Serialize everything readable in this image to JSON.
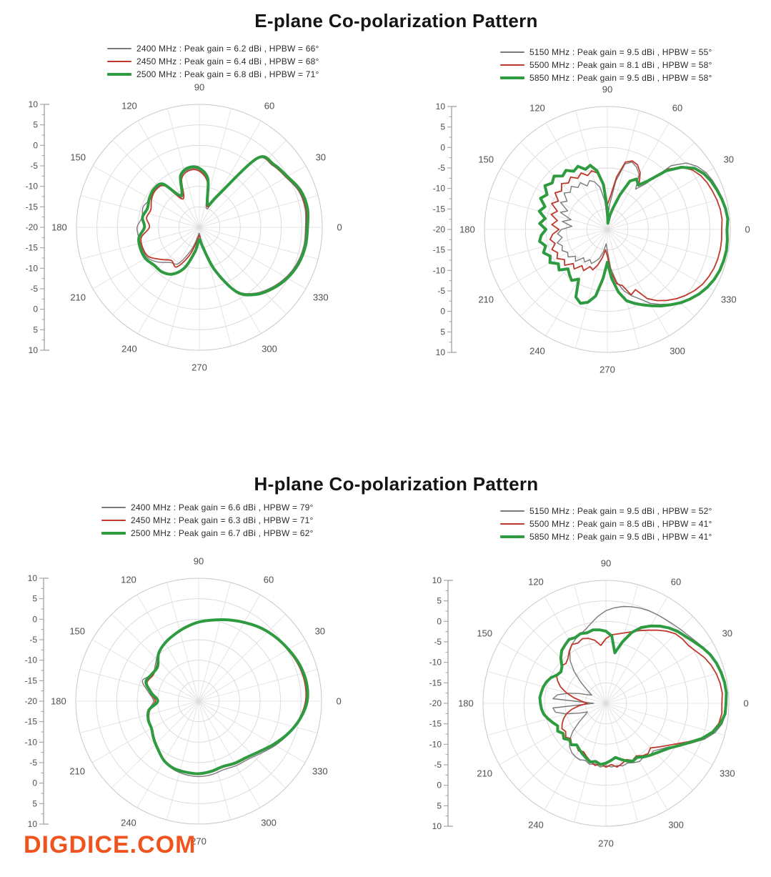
{
  "sections": [
    {
      "title": "E-plane Co-polarization Pattern"
    },
    {
      "title": "H-plane Co-polarization Pattern"
    }
  ],
  "watermark": {
    "text": "DIGDICE.COM",
    "color": "#f0541e"
  },
  "palette": {
    "low_band": "#7a7a7a",
    "mid_band": "#bf382c",
    "high_band": "#2f9b41",
    "grid": "#d8d8d8",
    "axis": "#9a9a9a",
    "tick_label": "#4f4f4f"
  },
  "chart_data": [
    {
      "id": "eplane-2g4",
      "type": "polar",
      "angle_tick_step_deg": 30,
      "spoke_step_deg": 15,
      "angle_labels": [
        "0",
        "30",
        "60",
        "90",
        "120",
        "150",
        "180",
        "210",
        "240",
        "270",
        "300",
        "330"
      ],
      "radial_labels": [
        "10",
        "5",
        "0",
        "-5",
        "-10",
        "-15",
        "-20",
        "-15",
        "-10",
        "-5",
        "0",
        "5",
        "10"
      ],
      "r_axis": {
        "outer_db": 10,
        "center_db": -20,
        "ring_step_db": 5
      },
      "series": [
        {
          "freq": "2400 MHz",
          "label": "2400 MHz : Peak gain = 6.2 dBi , HPBW = 66°",
          "color": "#7a7a7a",
          "width": 1.4,
          "angle_start_deg": 0,
          "angle_step_deg": 10,
          "db": [
            5.9,
            6.2,
            5.8,
            4.4,
            3.4,
            1.6,
            -12,
            -15,
            -8.5,
            -6.0,
            -5.6,
            -7.0,
            -11.5,
            -6.5,
            -5.8,
            -6.2,
            -5.4,
            -5.8,
            -4.8,
            -5.0,
            -5.1,
            -5.3,
            -6.8,
            -8.8,
            -9.8,
            -14.0,
            -17.5,
            -18.5,
            -16.0,
            -9.5,
            -2.2,
            1.0,
            2.9,
            4.4,
            5.4,
            5.9
          ]
        },
        {
          "freq": "2450 MHz",
          "label": "2450 MHz : Peak gain = 6.4 dBi , HPBW = 68°",
          "color": "#bf382c",
          "width": 1.8,
          "angle_start_deg": 0,
          "angle_step_deg": 10,
          "db": [
            6.1,
            6.4,
            6.0,
            4.5,
            3.5,
            1.7,
            -11.5,
            -14.5,
            -8.8,
            -6.3,
            -5.9,
            -7.4,
            -12.0,
            -6.8,
            -6.0,
            -6.5,
            -7.4,
            -6.9,
            -7.8,
            -5.6,
            -5.3,
            -5.7,
            -7.8,
            -9.4,
            -8.8,
            -12.5,
            -16.5,
            -18.0,
            -15.5,
            -9.2,
            -2.0,
            1.2,
            3.1,
            4.6,
            5.6,
            6.1
          ]
        },
        {
          "freq": "2500 MHz",
          "label": "2500 MHz : Peak gain = 6.8 dBi , HPBW = 71°",
          "color": "#2f9b41",
          "width": 4,
          "angle_start_deg": 0,
          "angle_step_deg": 10,
          "db": [
            6.4,
            6.8,
            6.3,
            4.8,
            3.8,
            2.0,
            -11.0,
            -14.0,
            -8.0,
            -5.6,
            -5.2,
            -6.6,
            -11.0,
            -6.2,
            -5.5,
            -5.9,
            -6.5,
            -5.9,
            -6.6,
            -5.0,
            -4.7,
            -4.8,
            -5.6,
            -5.8,
            -6.8,
            -9.5,
            -14.0,
            -17.0,
            -15.0,
            -8.8,
            -1.8,
            1.4,
            3.3,
            4.8,
            5.8,
            6.3
          ]
        }
      ]
    },
    {
      "id": "eplane-5g",
      "type": "polar",
      "angle_tick_step_deg": 30,
      "spoke_step_deg": 15,
      "angle_labels": [
        "0",
        "30",
        "60",
        "90",
        "120",
        "150",
        "180",
        "210",
        "240",
        "270",
        "300",
        "330"
      ],
      "radial_labels": [
        "10",
        "5",
        "0",
        "-5",
        "-10",
        "-15",
        "-20",
        "-15",
        "-10",
        "-5",
        "0",
        "5",
        "10"
      ],
      "r_axis": {
        "outer_db": 10,
        "center_db": -20,
        "ring_step_db": 5
      },
      "series": [
        {
          "freq": "5150 MHz",
          "label": "5150 MHz : Peak gain = 9.5 dBi , HPBW = 55°",
          "color": "#7a7a7a",
          "width": 1.4,
          "angle_start_deg": 0,
          "angle_step_deg": 5,
          "db": [
            9.3,
            9.5,
            9.4,
            9.1,
            8.7,
            8.3,
            7.8,
            6.8,
            5.2,
            2.0,
            -5.5,
            -8.0,
            -4.5,
            -3.2,
            -2.5,
            -3.5,
            -8.0,
            -14.0,
            -18.0,
            -13.0,
            -9.5,
            -8.0,
            -7.3,
            -8.3,
            -6.8,
            -7.5,
            -6.3,
            -7.2,
            -6.2,
            -8.0,
            -6.8,
            -9.3,
            -7.8,
            -10.8,
            -8.8,
            -11.3,
            -8.8,
            -7.8,
            -8.8,
            -7.3,
            -8.3,
            -7.8,
            -8.8,
            -8.3,
            -9.8,
            -9.0,
            -11.0,
            -10.3,
            -11.5,
            -10.8,
            -11.8,
            -12.8,
            -14.5,
            -16.5,
            -14.8,
            -10.5,
            -7.0,
            -4.5,
            -2.8,
            -1.3,
            0.8,
            2.3,
            3.8,
            5.2,
            6.3,
            7.3,
            8.1,
            8.7,
            9.1,
            9.3,
            9.4,
            9.4
          ]
        },
        {
          "freq": "5500 MHz",
          "label": "5500 MHz : Peak gain = 8.1 dBi , HPBW = 58°",
          "color": "#bf382c",
          "width": 1.8,
          "angle_start_deg": 0,
          "angle_step_deg": 5,
          "db": [
            7.9,
            8.1,
            8.0,
            7.7,
            7.3,
            6.9,
            6.3,
            5.3,
            3.6,
            0.8,
            -5.0,
            -6.5,
            -4.0,
            -2.6,
            -2.2,
            -3.0,
            -7.0,
            -12.0,
            -14.0,
            -8.5,
            -6.0,
            -5.2,
            -6.0,
            -4.8,
            -5.6,
            -4.4,
            -5.2,
            -4.2,
            -5.4,
            -4.4,
            -6.2,
            -5.0,
            -7.0,
            -5.8,
            -7.6,
            -6.4,
            -8.2,
            -6.6,
            -5.8,
            -6.8,
            -5.6,
            -6.6,
            -5.8,
            -7.2,
            -6.4,
            -8.2,
            -7.4,
            -9.2,
            -8.4,
            -10.0,
            -9.5,
            -11.0,
            -13.0,
            -15.0,
            -13.5,
            -9.5,
            -6.5,
            -5.8,
            -3.0,
            -3.8,
            -0.5,
            1.2,
            2.6,
            3.9,
            5.0,
            6.0,
            6.8,
            7.3,
            7.7,
            7.9,
            8.0,
            8.0
          ]
        },
        {
          "freq": "5850 MHz",
          "label": "5850 MHz : Peak gain = 9.5 dBi , HPBW = 58°",
          "color": "#2f9b41",
          "width": 4,
          "angle_start_deg": 0,
          "angle_step_deg": 5,
          "db": [
            9.2,
            9.5,
            9.3,
            8.9,
            8.4,
            7.9,
            7.2,
            6.0,
            3.6,
            0.2,
            -4.5,
            -6.8,
            -5.8,
            -7.0,
            -11.0,
            -14.5,
            -16.5,
            -18.5,
            -15.0,
            -9.0,
            -5.5,
            -3.8,
            -4.4,
            -3.0,
            -3.6,
            -2.4,
            -3.0,
            -1.6,
            -2.4,
            -1.4,
            -3.0,
            -2.0,
            -3.8,
            -2.8,
            -4.6,
            -3.4,
            -5.0,
            -3.8,
            -3.2,
            -4.4,
            -3.4,
            -4.6,
            -3.8,
            -5.4,
            -4.6,
            -6.4,
            -5.6,
            -4.8,
            -6.0,
            -1.8,
            -0.8,
            -1.6,
            -3.5,
            -8.0,
            -12.0,
            -8.0,
            -4.5,
            -2.0,
            -0.8,
            0.3,
            1.5,
            2.8,
            4.0,
            5.3,
            6.4,
            7.4,
            8.2,
            8.8,
            9.2,
            9.4,
            9.5,
            9.4
          ]
        }
      ]
    },
    {
      "id": "hplane-2g4",
      "type": "polar",
      "angle_tick_step_deg": 30,
      "spoke_step_deg": 15,
      "angle_labels": [
        "0",
        "30",
        "60",
        "90",
        "120",
        "150",
        "180",
        "210",
        "240",
        "270",
        "300",
        "330"
      ],
      "radial_labels": [
        "10",
        "5",
        "0",
        "-5",
        "-10",
        "-15",
        "-20",
        "-15",
        "-10",
        "-5",
        "0",
        "5",
        "10"
      ],
      "r_axis": {
        "outer_db": 10,
        "center_db": -20,
        "ring_step_db": 5
      },
      "series": [
        {
          "freq": "2400 MHz",
          "label": "2400 MHz : Peak gain = 6.6 dBi , HPBW = 79°",
          "color": "#7a7a7a",
          "width": 1.4,
          "angle_start_deg": 0,
          "angle_step_deg": 10,
          "db": [
            6.3,
            6.6,
            6.2,
            5.4,
            4.6,
            3.6,
            2.4,
            1.2,
            0.2,
            -0.6,
            -1.6,
            -2.6,
            -3.4,
            -4.6,
            -6.2,
            -7.0,
            -5.4,
            -7.6,
            -9.0,
            -7.6,
            -6.8,
            -6.6,
            -5.6,
            -4.4,
            -3.0,
            -2.2,
            -1.8,
            -1.6,
            -1.8,
            -2.2,
            -1.8,
            -1.4,
            -0.2,
            1.6,
            3.4,
            5.2
          ]
        },
        {
          "freq": "2450 MHz",
          "label": "2450 MHz : Peak gain = 6.3 dBi , HPBW = 71°",
          "color": "#bf382c",
          "width": 1.8,
          "angle_start_deg": 0,
          "angle_step_deg": 10,
          "db": [
            6.1,
            6.3,
            5.9,
            5.1,
            4.3,
            3.3,
            2.1,
            1.0,
            0.0,
            -0.8,
            -1.8,
            -2.8,
            -3.7,
            -5.0,
            -6.6,
            -7.2,
            -6.6,
            -8.0,
            -9.4,
            -7.9,
            -7.1,
            -6.8,
            -5.9,
            -4.7,
            -3.3,
            -2.6,
            -2.3,
            -2.2,
            -2.4,
            -2.8,
            -2.3,
            -1.8,
            -0.6,
            1.3,
            3.1,
            4.9
          ]
        },
        {
          "freq": "2500 MHz",
          "label": "2500 MHz : Peak gain = 6.7 dBi , HPBW = 62°",
          "color": "#2f9b41",
          "width": 4,
          "angle_start_deg": 0,
          "angle_step_deg": 10,
          "db": [
            6.5,
            6.7,
            6.2,
            5.3,
            4.4,
            3.4,
            2.2,
            1.1,
            0.1,
            -0.7,
            -1.7,
            -2.7,
            -3.6,
            -4.8,
            -6.9,
            -6.8,
            -6.3,
            -8.3,
            -10.0,
            -7.7,
            -6.9,
            -6.7,
            -5.7,
            -4.6,
            -3.2,
            -2.5,
            -2.4,
            -2.3,
            -2.6,
            -3.0,
            -2.5,
            -2.0,
            -0.8,
            1.1,
            3.2,
            5.1
          ]
        }
      ]
    },
    {
      "id": "hplane-5g",
      "type": "polar",
      "angle_tick_step_deg": 30,
      "spoke_step_deg": 15,
      "angle_labels": [
        "0",
        "30",
        "60",
        "90",
        "120",
        "150",
        "180",
        "210",
        "240",
        "270",
        "300",
        "330"
      ],
      "radial_labels": [
        "10",
        "5",
        "0",
        "-5",
        "-10",
        "-15",
        "-20",
        "-15",
        "-10",
        "-5",
        "0",
        "5",
        "10"
      ],
      "r_axis": {
        "outer_db": 10,
        "center_db": -20,
        "ring_step_db": 5
      },
      "series": [
        {
          "freq": "5150 MHz",
          "label": "5150 MHz : Peak gain = 9.5 dBi , HPBW = 52°",
          "color": "#7a7a7a",
          "width": 1.4,
          "angle_start_deg": 0,
          "angle_step_deg": 5,
          "db": [
            9.4,
            9.5,
            9.3,
            9.0,
            8.6,
            8.1,
            7.4,
            6.6,
            6.0,
            5.6,
            5.3,
            5.1,
            5.0,
            4.9,
            4.7,
            4.4,
            4.0,
            3.4,
            2.6,
            1.4,
            0.0,
            -1.2,
            -2.0,
            -2.6,
            -3.4,
            -4.6,
            -6.4,
            -9.0,
            -12.0,
            -14.5,
            -16.0,
            -15.0,
            -13.0,
            -10.5,
            -8.0,
            -7.0,
            -17.0,
            -7.0,
            -7.5,
            -10.0,
            -13.0,
            -15.0,
            -14.0,
            -12.0,
            -9.5,
            -7.5,
            -6.2,
            -5.4,
            -5.0,
            -4.8,
            -5.2,
            -4.6,
            -5.0,
            -4.4,
            -4.8,
            -4.4,
            -4.6,
            -4.2,
            -4.5,
            -4.0,
            -3.6,
            -4.0,
            -3.3,
            -3.6,
            -2.6,
            -1.4,
            0.6,
            3.0,
            5.6,
            7.6,
            8.8,
            9.3
          ]
        },
        {
          "freq": "5500 MHz",
          "label": "5500 MHz : Peak gain = 8.5 dBi , HPBW = 41°",
          "color": "#bf382c",
          "width": 1.8,
          "angle_start_deg": 0,
          "angle_step_deg": 5,
          "db": [
            8.3,
            8.5,
            8.3,
            7.9,
            7.3,
            6.5,
            5.4,
            4.6,
            4.4,
            4.0,
            3.0,
            1.8,
            0.6,
            -0.4,
            -1.4,
            -2.2,
            -2.8,
            -3.2,
            -4.2,
            -5.8,
            -4.4,
            -3.6,
            -3.2,
            -3.8,
            -3.4,
            -4.4,
            -5.6,
            -6.2,
            -5.8,
            -6.4,
            -6.0,
            -7.0,
            -8.2,
            -10.0,
            -12.0,
            -14.0,
            -15.5,
            -13.5,
            -11.5,
            -10.0,
            -9.0,
            -8.2,
            -7.6,
            -8.0,
            -7.2,
            -7.8,
            -7.0,
            -7.4,
            -6.6,
            -7.0,
            -6.2,
            -5.4,
            -4.6,
            -5.2,
            -4.4,
            -5.0,
            -4.2,
            -4.8,
            -5.4,
            -4.6,
            -5.2,
            -4.4,
            -4.0,
            -4.6,
            -3.4,
            -2.0,
            -0.2,
            2.2,
            4.8,
            6.8,
            8.0,
            8.4
          ]
        },
        {
          "freq": "5850 MHz",
          "label": "5850 MHz : Peak gain = 9.5 dBi , HPBW = 41°",
          "color": "#2f9b41",
          "width": 4,
          "angle_start_deg": 0,
          "angle_step_deg": 5,
          "db": [
            9.3,
            9.5,
            9.4,
            9.1,
            8.7,
            8.1,
            7.2,
            6.2,
            5.4,
            4.8,
            4.0,
            3.0,
            1.8,
            0.4,
            -1.6,
            -4.5,
            -7.5,
            -3.5,
            -2.4,
            -2.0,
            -1.8,
            -2.2,
            -1.9,
            -2.3,
            -2.0,
            -2.6,
            -3.2,
            -4.4,
            -6.0,
            -6.6,
            -6.2,
            -5.2,
            -4.6,
            -4.2,
            -4.0,
            -3.8,
            -4.0,
            -4.2,
            -4.6,
            -5.4,
            -6.2,
            -7.0,
            -6.4,
            -7.2,
            -6.6,
            -7.4,
            -6.8,
            -7.6,
            -7.0,
            -6.4,
            -5.8,
            -5.2,
            -5.6,
            -5.0,
            -5.4,
            -6.0,
            -6.6,
            -5.8,
            -5.0,
            -4.4,
            -4.8,
            -4.0,
            -3.4,
            -2.8,
            -2.0,
            -1.0,
            0.6,
            2.6,
            5.0,
            7.0,
            8.4,
            9.2
          ]
        }
      ]
    }
  ]
}
